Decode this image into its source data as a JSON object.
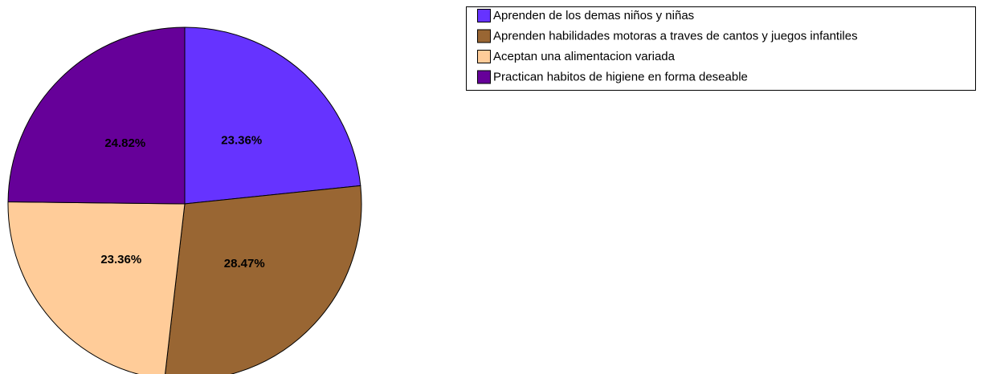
{
  "chart_data": {
    "type": "pie",
    "categories": [
      "Aprenden de los demas niños y niñas",
      "Aprenden habilidades motoras a traves de cantos y juegos infantiles",
      "Aceptan una alimentacion variada",
      "Practican habitos de higiene en forma deseable"
    ],
    "values": [
      23.36,
      28.47,
      23.36,
      24.82
    ],
    "value_labels": [
      "23.36%",
      "28.47%",
      "23.36%",
      "24.82%"
    ],
    "colors": [
      "#6633ff",
      "#996633",
      "#ffcc99",
      "#660099"
    ],
    "legend": "top-right"
  }
}
